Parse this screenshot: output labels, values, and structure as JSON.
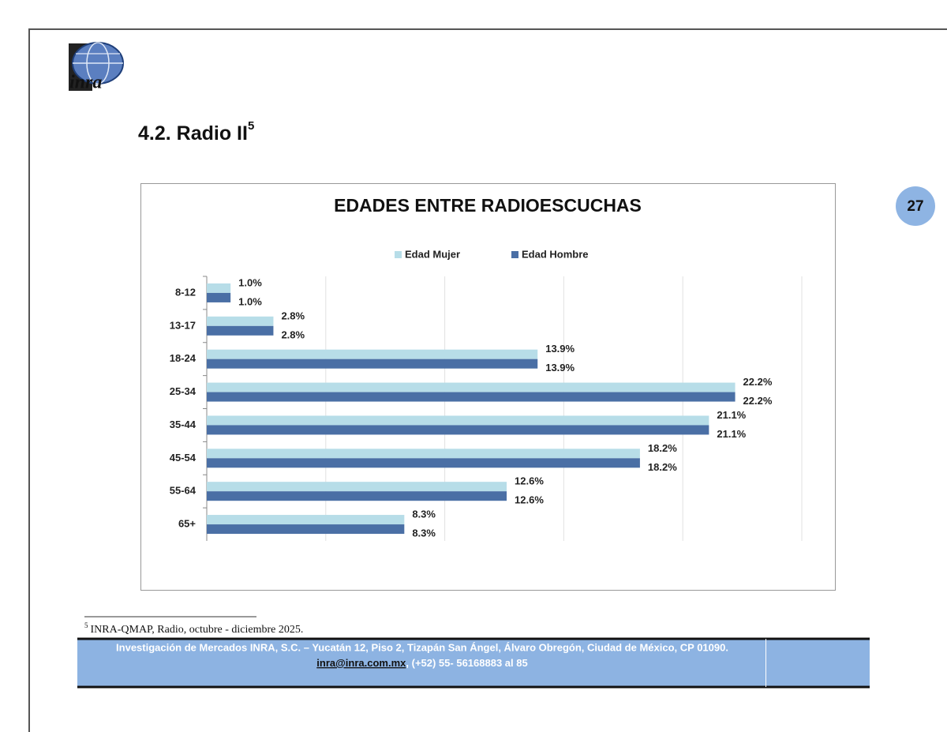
{
  "logo_text": "inra",
  "section_title": "4.2. Radio II",
  "section_title_note": "5",
  "page_number": "27",
  "chart_data": {
    "type": "bar",
    "orientation": "horizontal",
    "title": "EDADES ENTRE RADIOESCUCHAS",
    "categories": [
      "8-12",
      "13-17",
      "18-24",
      "25-34",
      "35-44",
      "45-54",
      "55-64",
      "65+"
    ],
    "series": [
      {
        "name": "Edad Mujer",
        "color": "#b7dde8",
        "values": [
          1.0,
          2.8,
          13.9,
          22.2,
          21.1,
          18.2,
          12.6,
          8.3
        ],
        "value_labels": [
          "1.0%",
          "2.8%",
          "13.9%",
          "22.2%",
          "21.1%",
          "18.2%",
          "12.6%",
          "8.3%"
        ]
      },
      {
        "name": "Edad Hombre",
        "color": "#4a6fa5",
        "values": [
          1.0,
          2.8,
          13.9,
          22.2,
          21.1,
          18.2,
          12.6,
          8.3
        ],
        "value_labels": [
          "1.0%",
          "2.8%",
          "13.9%",
          "22.2%",
          "21.1%",
          "18.2%",
          "12.6%",
          "8.3%"
        ]
      }
    ],
    "xlim": [
      0,
      25
    ],
    "xticks": [
      0,
      5,
      10,
      15,
      20,
      25
    ],
    "grid": true,
    "legend": "top"
  },
  "footnote": {
    "marker": "5",
    "text": "INRA-QMAP, Radio, octubre - diciembre 2025."
  },
  "footer": {
    "line1": "Investigación de Mercados INRA, S.C. – Yucatán 12, Piso 2, Tizapán San Ángel, Álvaro Obregón, Ciudad de México, CP 01090.",
    "email": "inra@inra.com.mx",
    "line2_rest": ", (+52) 55- 56168883 al 85"
  }
}
